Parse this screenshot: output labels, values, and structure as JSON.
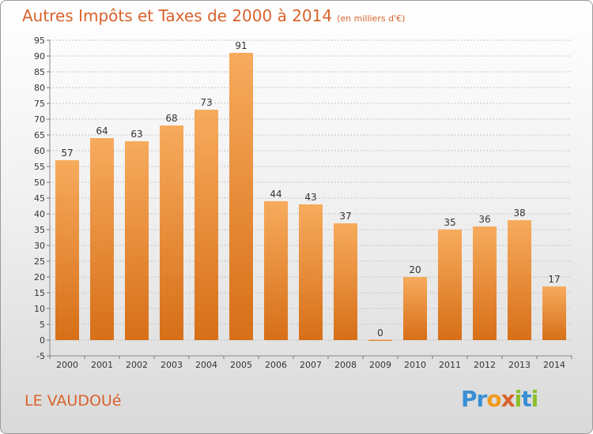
{
  "title": "Autres Impôts et Taxes de 2000 à 2014",
  "subtitle": "(en milliers d'€)",
  "commune": "LE VAUDOUé",
  "logo": {
    "text": "Proxiti",
    "letters": [
      {
        "ch": "P",
        "color": "#3a8fd6"
      },
      {
        "ch": "r",
        "color": "#3a8fd6"
      },
      {
        "ch": "o",
        "color": "#f29a1f"
      },
      {
        "ch": "x",
        "color": "#d9622c"
      },
      {
        "ch": "i",
        "color": "#8bbf2a"
      },
      {
        "ch": "t",
        "color": "#3a8fd6"
      },
      {
        "ch": "i",
        "color": "#8bbf2a"
      }
    ]
  },
  "colors": {
    "title": "#d9622c",
    "bar_light": "#f6a85a",
    "bar_dark": "#d9731c",
    "grid": "#c8c8c8",
    "axis_text": "#333333"
  },
  "chart_data": {
    "type": "bar",
    "categories": [
      "2000",
      "2001",
      "2002",
      "2003",
      "2004",
      "2005",
      "2006",
      "2007",
      "2008",
      "2009",
      "2010",
      "2011",
      "2012",
      "2013",
      "2014"
    ],
    "values": [
      57,
      64,
      63,
      68,
      73,
      91,
      44,
      43,
      37,
      0,
      20,
      35,
      36,
      38,
      17
    ],
    "data_labels": [
      "57",
      "64",
      "63",
      "68",
      "73",
      "91",
      "44",
      "43",
      "37",
      "0",
      "20",
      "35",
      "36",
      "38",
      "17"
    ],
    "yticks": [
      -5,
      0,
      5,
      10,
      15,
      20,
      25,
      30,
      35,
      40,
      45,
      50,
      55,
      60,
      65,
      70,
      75,
      80,
      85,
      90,
      95
    ],
    "ylim": [
      -5,
      95
    ],
    "grid": true,
    "title": "Autres Impôts et Taxes de 2000 à 2014",
    "subtitle": "(en milliers d'€)"
  }
}
